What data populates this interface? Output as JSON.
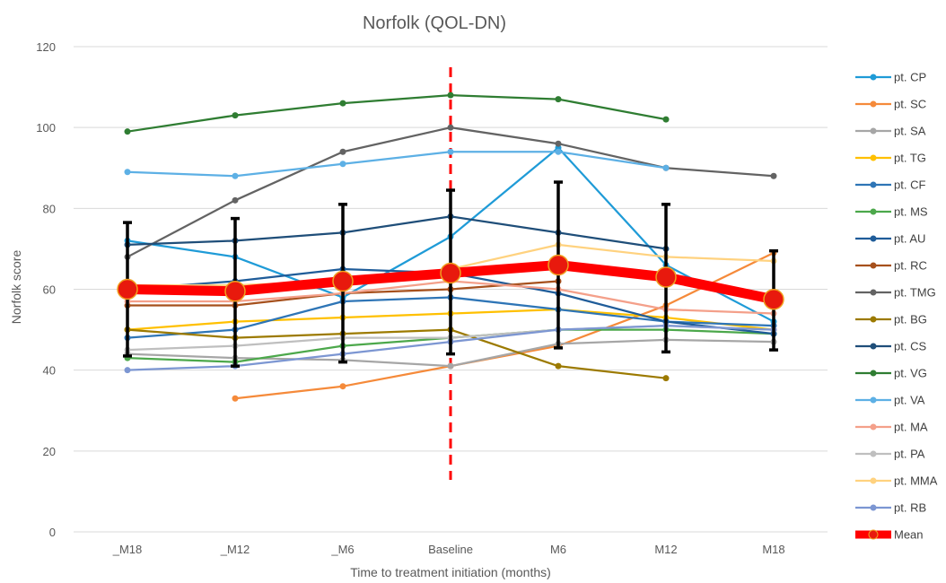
{
  "chart_data": {
    "type": "line",
    "title": "Norfolk (QOL-DN)",
    "xlabel": "Time to treatment initiation (months)",
    "ylabel": "Norfolk score",
    "categories": [
      "_M18",
      "_M12",
      "_M6",
      "Baseline",
      "M6",
      "M12",
      "M18"
    ],
    "ylim": [
      0,
      120
    ],
    "yticks": [
      0,
      20,
      40,
      60,
      80,
      100,
      120
    ],
    "grid": "horizontal",
    "legend_position": "right",
    "baseline_marker": {
      "category": "Baseline",
      "color": "#ff0000",
      "style": "dashed"
    },
    "series": [
      {
        "name": "pt. CP",
        "color": "#1f9bd7",
        "values": [
          72,
          68,
          58,
          73,
          95,
          66,
          52
        ]
      },
      {
        "name": "pt. SC",
        "color": "#f58a3a",
        "values": [
          null,
          33,
          36,
          41,
          46,
          56,
          69
        ]
      },
      {
        "name": "pt. SA",
        "color": "#a6a6a6",
        "values": [
          44,
          43,
          42.5,
          41,
          46.5,
          47.5,
          47
        ]
      },
      {
        "name": "pt. TG",
        "color": "#ffc000",
        "values": [
          50,
          52,
          53,
          54,
          55,
          53,
          50
        ]
      },
      {
        "name": "pt. CF",
        "color": "#2e75b6",
        "values": [
          48,
          50,
          57,
          58,
          55,
          52,
          51
        ]
      },
      {
        "name": "pt. MS",
        "color": "#4ca84b",
        "values": [
          43,
          42,
          46,
          48,
          50,
          50,
          49
        ]
      },
      {
        "name": "pt. AU",
        "color": "#1f5c99",
        "values": [
          60,
          62,
          65,
          64,
          59,
          52,
          49
        ]
      },
      {
        "name": "pt. RC",
        "color": "#a6501c",
        "values": [
          56,
          56,
          59,
          60,
          62,
          null,
          null
        ]
      },
      {
        "name": "pt. TMG",
        "color": "#636363",
        "values": [
          68,
          82,
          94,
          100,
          96,
          90,
          88
        ]
      },
      {
        "name": "pt. BG",
        "color": "#9c7a00",
        "values": [
          50,
          48,
          49,
          50,
          41,
          38,
          null
        ]
      },
      {
        "name": "pt. CS",
        "color": "#1f4e79",
        "values": [
          71,
          72,
          74,
          78,
          74,
          70,
          null
        ]
      },
      {
        "name": "pt. VG",
        "color": "#2f7d32",
        "values": [
          99,
          103,
          106,
          108,
          107,
          102,
          null
        ]
      },
      {
        "name": "pt. VA",
        "color": "#5db0e5",
        "values": [
          89,
          88,
          91,
          94,
          94,
          90,
          null
        ]
      },
      {
        "name": "pt. MA",
        "color": "#f4a08a",
        "values": [
          57,
          57,
          59,
          62,
          60,
          55,
          54
        ]
      },
      {
        "name": "pt. PA",
        "color": "#bfbfbf",
        "values": [
          45,
          46,
          48,
          48,
          50,
          51,
          50
        ]
      },
      {
        "name": "pt. MMA",
        "color": "#ffd27f",
        "values": [
          61,
          61,
          62,
          65,
          71,
          68,
          67
        ]
      },
      {
        "name": "pt. RB",
        "color": "#7c96d2",
        "values": [
          40,
          41,
          44,
          47,
          50,
          51,
          50
        ]
      }
    ],
    "mean": {
      "name": "Mean",
      "color": "#ff0000",
      "marker_color": "#e8190d",
      "marker_edge": "#f0a020",
      "values": [
        60,
        59.5,
        62,
        64,
        66,
        63,
        57.5
      ],
      "error_upper": [
        76.5,
        77.5,
        81,
        84.5,
        86.5,
        81,
        69.5
      ],
      "error_lower": [
        43.5,
        41,
        42,
        44,
        45.5,
        44.5,
        45
      ],
      "error_color": "#000000"
    }
  }
}
